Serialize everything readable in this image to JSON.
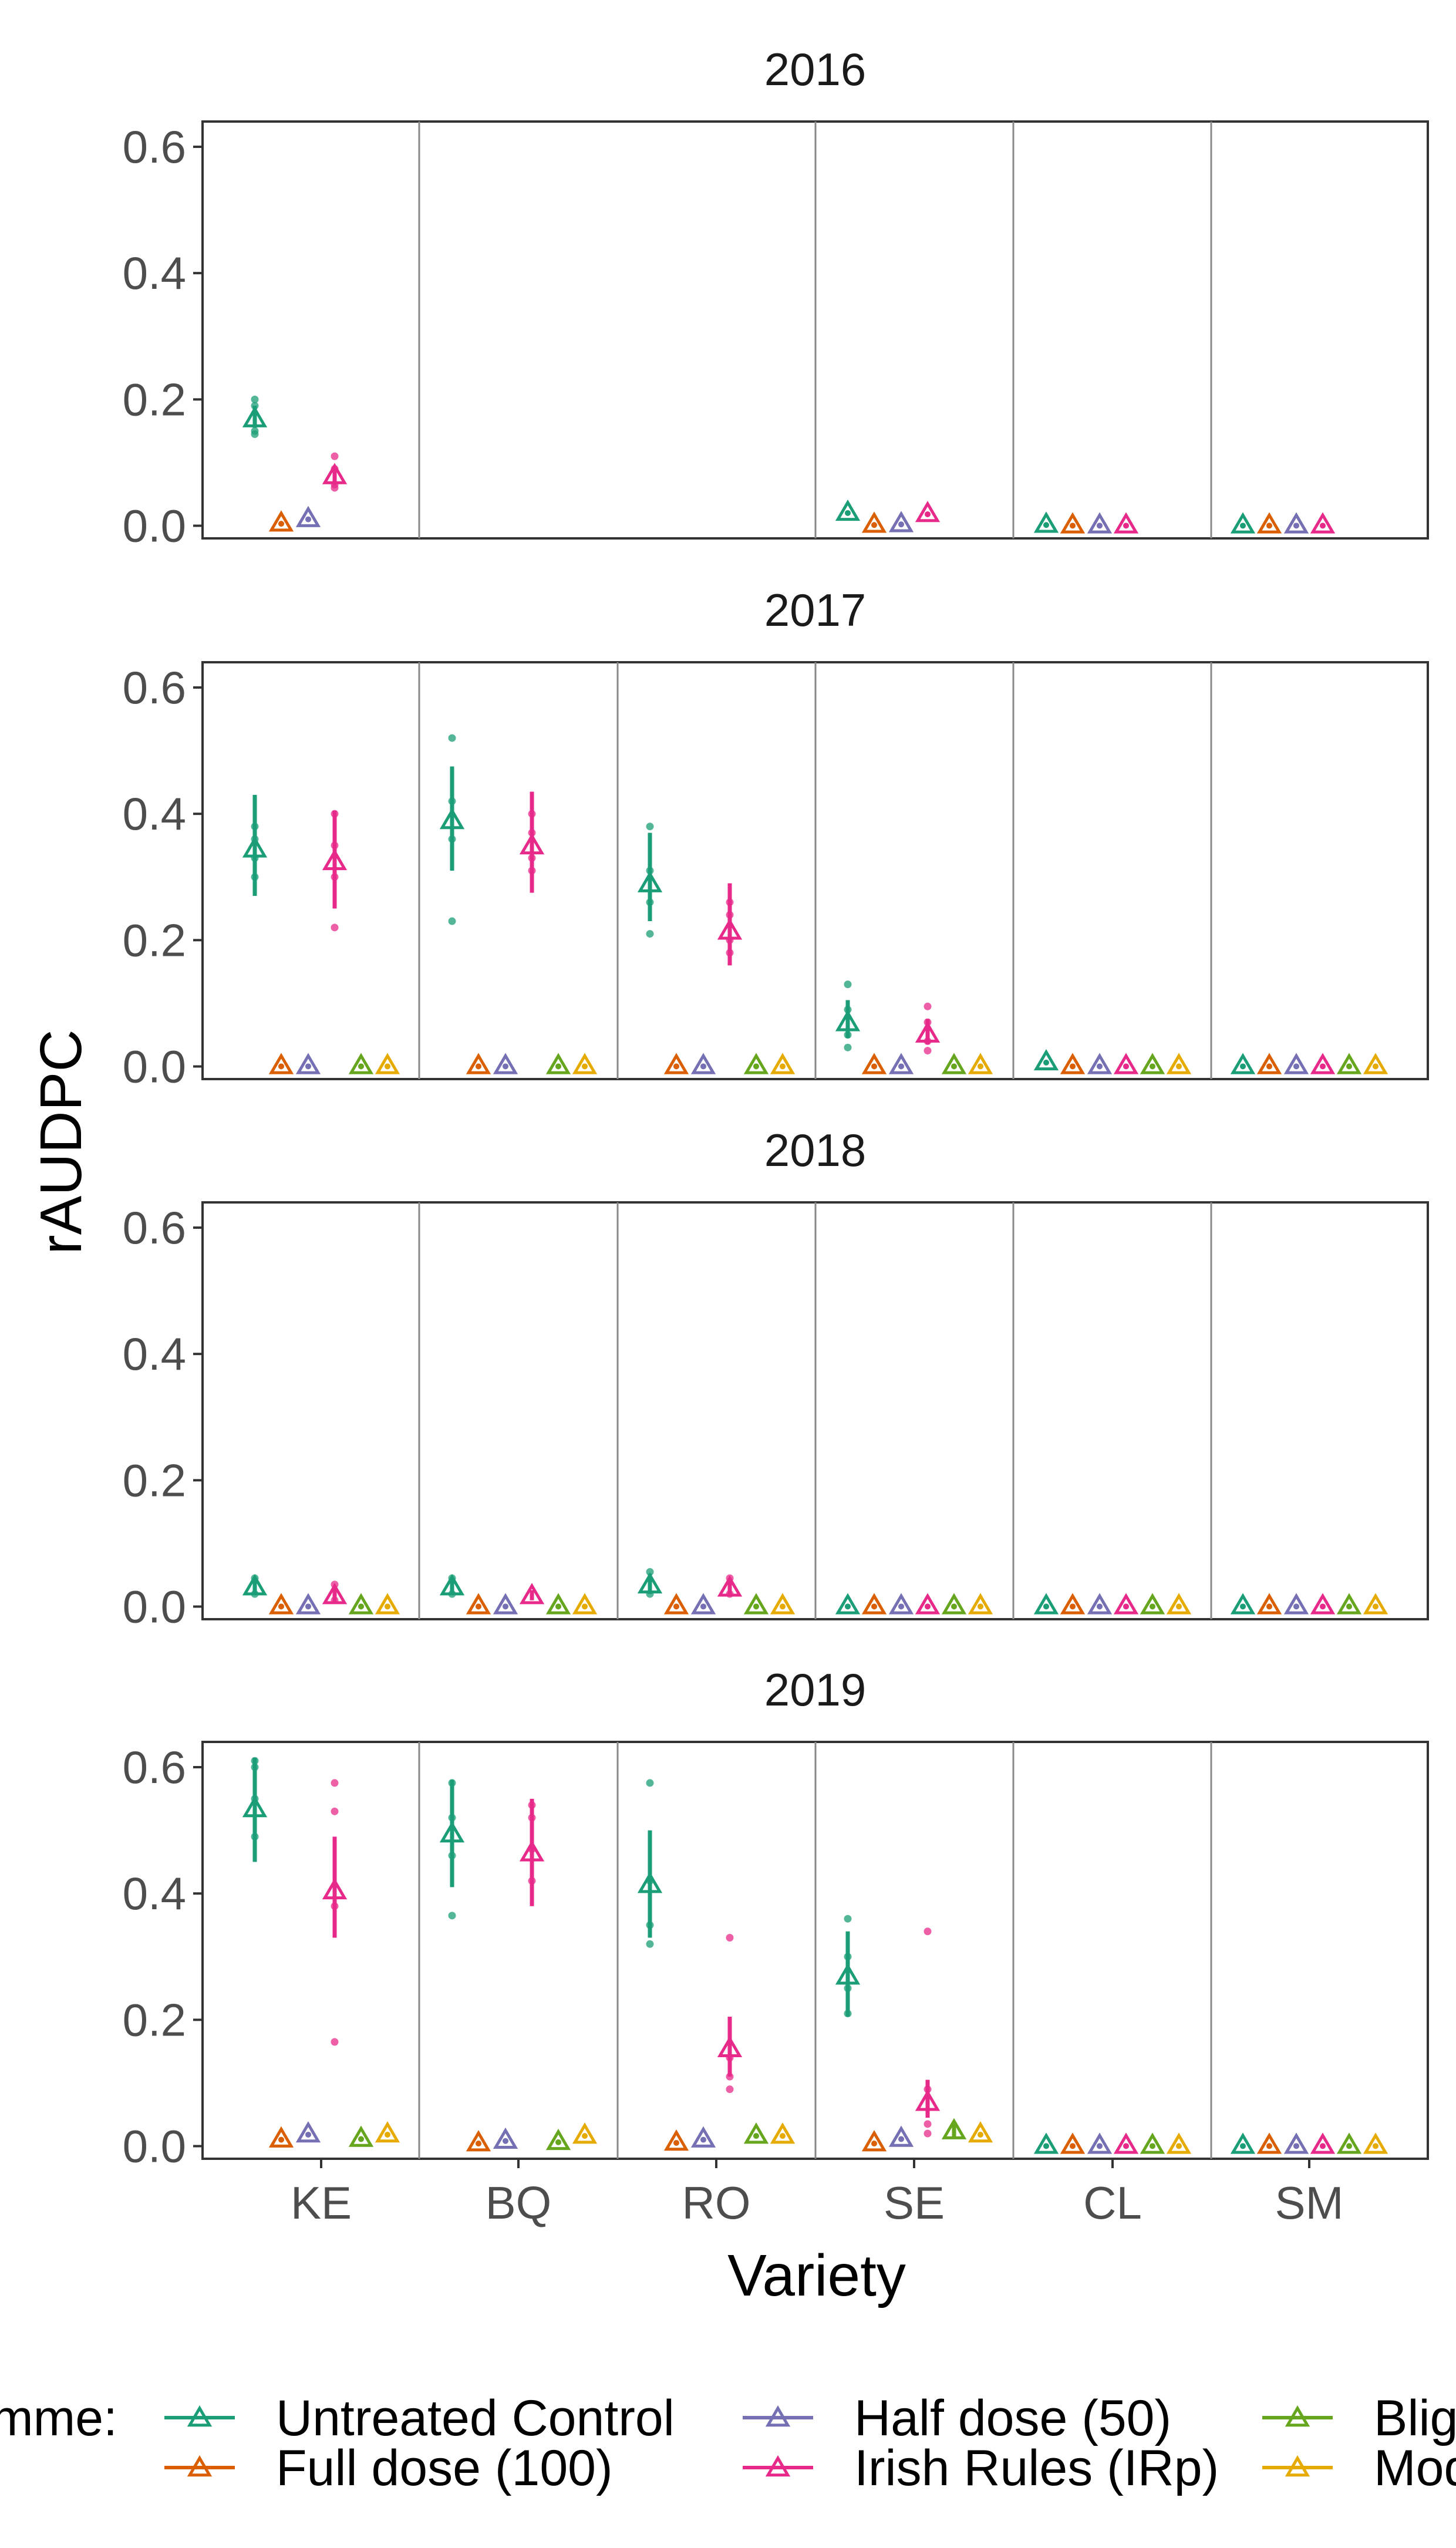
{
  "chart_data": {
    "type": "scatter",
    "xlabel": "Variety",
    "ylabel": "rAUDPC",
    "ylim": [
      -0.02,
      0.64
    ],
    "yticks": [
      0.0,
      0.2,
      0.4,
      0.6
    ],
    "ytick_labels": [
      "0.0",
      "0.2",
      "0.4",
      "0.6"
    ],
    "varieties": [
      "KE",
      "BQ",
      "RO",
      "SE",
      "CL",
      "SM"
    ],
    "legend": {
      "title": "Programme:",
      "position": "bottom",
      "entries": [
        {
          "key": "UC",
          "label": "Untreated Control",
          "color": "#1b9e77"
        },
        {
          "key": "FD",
          "label": "Full dose (100)",
          "color": "#d95f02"
        },
        {
          "key": "HD",
          "label": "Half dose (50)",
          "color": "#7570b3"
        },
        {
          "key": "IR",
          "label": "Irish Rules (IRp)",
          "color": "#e7298a"
        },
        {
          "key": "BM",
          "label": "Blight Manager",
          "color": "#66a61e"
        },
        {
          "key": "MO",
          "label": "Modified",
          "color": "#e6ab02"
        }
      ]
    },
    "panels": [
      {
        "year": "2016",
        "points": [
          {
            "variety": "KE",
            "prog": "UC",
            "mean": 0.17,
            "lo": 0.155,
            "hi": 0.19,
            "obs": [
              0.2,
              0.19,
              0.15,
              0.145
            ]
          },
          {
            "variety": "KE",
            "prog": "FD",
            "mean": 0.005
          },
          {
            "variety": "KE",
            "prog": "HD",
            "mean": 0.012
          },
          {
            "variety": "KE",
            "prog": "IR",
            "mean": 0.08,
            "lo": 0.065,
            "hi": 0.09,
            "obs": [
              0.11,
              0.09,
              0.065,
              0.06
            ]
          },
          {
            "variety": "SE",
            "prog": "UC",
            "mean": 0.022
          },
          {
            "variety": "SE",
            "prog": "FD",
            "mean": 0.003
          },
          {
            "variety": "SE",
            "prog": "HD",
            "mean": 0.004
          },
          {
            "variety": "SE",
            "prog": "IR",
            "mean": 0.02
          },
          {
            "variety": "CL",
            "prog": "UC",
            "mean": 0.003
          },
          {
            "variety": "CL",
            "prog": "FD",
            "mean": 0.002
          },
          {
            "variety": "CL",
            "prog": "HD",
            "mean": 0.002
          },
          {
            "variety": "CL",
            "prog": "IR",
            "mean": 0.002
          },
          {
            "variety": "SM",
            "prog": "UC",
            "mean": 0.002
          },
          {
            "variety": "SM",
            "prog": "FD",
            "mean": 0.002
          },
          {
            "variety": "SM",
            "prog": "HD",
            "mean": 0.002
          },
          {
            "variety": "SM",
            "prog": "IR",
            "mean": 0.002
          }
        ]
      },
      {
        "year": "2017",
        "points": [
          {
            "variety": "KE",
            "prog": "UC",
            "mean": 0.345,
            "lo": 0.27,
            "hi": 0.43,
            "obs": [
              0.3,
              0.33,
              0.36,
              0.38
            ]
          },
          {
            "variety": "KE",
            "prog": "FD",
            "mean": 0.002
          },
          {
            "variety": "KE",
            "prog": "HD",
            "mean": 0.002
          },
          {
            "variety": "KE",
            "prog": "IR",
            "mean": 0.325,
            "lo": 0.25,
            "hi": 0.405,
            "obs": [
              0.22,
              0.3,
              0.35,
              0.4
            ]
          },
          {
            "variety": "KE",
            "prog": "BM",
            "mean": 0.002
          },
          {
            "variety": "KE",
            "prog": "MO",
            "mean": 0.002
          },
          {
            "variety": "BQ",
            "prog": "UC",
            "mean": 0.39,
            "lo": 0.31,
            "hi": 0.475,
            "obs": [
              0.23,
              0.36,
              0.42,
              0.52
            ]
          },
          {
            "variety": "BQ",
            "prog": "FD",
            "mean": 0.002
          },
          {
            "variety": "BQ",
            "prog": "HD",
            "mean": 0.002
          },
          {
            "variety": "BQ",
            "prog": "IR",
            "mean": 0.35,
            "lo": 0.275,
            "hi": 0.435,
            "obs": [
              0.31,
              0.33,
              0.37,
              0.4
            ]
          },
          {
            "variety": "BQ",
            "prog": "BM",
            "mean": 0.002
          },
          {
            "variety": "BQ",
            "prog": "MO",
            "mean": 0.002
          },
          {
            "variety": "RO",
            "prog": "UC",
            "mean": 0.29,
            "lo": 0.23,
            "hi": 0.37,
            "obs": [
              0.21,
              0.26,
              0.31,
              0.38
            ]
          },
          {
            "variety": "RO",
            "prog": "FD",
            "mean": 0.002
          },
          {
            "variety": "RO",
            "prog": "HD",
            "mean": 0.002
          },
          {
            "variety": "RO",
            "prog": "IR",
            "mean": 0.215,
            "lo": 0.16,
            "hi": 0.29,
            "obs": [
              0.18,
              0.2,
              0.24,
              0.26
            ]
          },
          {
            "variety": "RO",
            "prog": "BM",
            "mean": 0.002
          },
          {
            "variety": "RO",
            "prog": "MO",
            "mean": 0.002
          },
          {
            "variety": "SE",
            "prog": "UC",
            "mean": 0.07,
            "lo": 0.045,
            "hi": 0.105,
            "obs": [
              0.03,
              0.05,
              0.09,
              0.13
            ]
          },
          {
            "variety": "SE",
            "prog": "FD",
            "mean": 0.002
          },
          {
            "variety": "SE",
            "prog": "HD",
            "mean": 0.002
          },
          {
            "variety": "SE",
            "prog": "IR",
            "mean": 0.052,
            "lo": 0.035,
            "hi": 0.075,
            "obs": [
              0.025,
              0.04,
              0.07,
              0.095
            ]
          },
          {
            "variety": "SE",
            "prog": "BM",
            "mean": 0.002
          },
          {
            "variety": "SE",
            "prog": "MO",
            "mean": 0.002
          },
          {
            "variety": "CL",
            "prog": "UC",
            "mean": 0.008
          },
          {
            "variety": "CL",
            "prog": "FD",
            "mean": 0.002
          },
          {
            "variety": "CL",
            "prog": "HD",
            "mean": 0.002
          },
          {
            "variety": "CL",
            "prog": "IR",
            "mean": 0.002
          },
          {
            "variety": "CL",
            "prog": "BM",
            "mean": 0.002
          },
          {
            "variety": "CL",
            "prog": "MO",
            "mean": 0.002
          },
          {
            "variety": "SM",
            "prog": "UC",
            "mean": 0.002
          },
          {
            "variety": "SM",
            "prog": "FD",
            "mean": 0.002
          },
          {
            "variety": "SM",
            "prog": "HD",
            "mean": 0.002
          },
          {
            "variety": "SM",
            "prog": "IR",
            "mean": 0.002
          },
          {
            "variety": "SM",
            "prog": "BM",
            "mean": 0.002
          },
          {
            "variety": "SM",
            "prog": "MO",
            "mean": 0.002
          }
        ]
      },
      {
        "year": "2018",
        "points": [
          {
            "variety": "KE",
            "prog": "UC",
            "mean": 0.032,
            "lo": 0.02,
            "hi": 0.045,
            "obs": [
              0.02,
              0.045
            ]
          },
          {
            "variety": "KE",
            "prog": "FD",
            "mean": 0.002
          },
          {
            "variety": "KE",
            "prog": "HD",
            "mean": 0.002
          },
          {
            "variety": "KE",
            "prog": "IR",
            "mean": 0.018,
            "lo": 0.008,
            "hi": 0.03,
            "obs": [
              0.035,
              0.01
            ]
          },
          {
            "variety": "KE",
            "prog": "BM",
            "mean": 0.002
          },
          {
            "variety": "KE",
            "prog": "MO",
            "mean": 0.002
          },
          {
            "variety": "BQ",
            "prog": "UC",
            "mean": 0.032,
            "lo": 0.02,
            "hi": 0.045,
            "obs": [
              0.02,
              0.045
            ]
          },
          {
            "variety": "BQ",
            "prog": "FD",
            "mean": 0.002
          },
          {
            "variety": "BQ",
            "prog": "HD",
            "mean": 0.002
          },
          {
            "variety": "BQ",
            "prog": "IR",
            "mean": 0.018,
            "lo": 0.01,
            "hi": 0.026
          },
          {
            "variety": "BQ",
            "prog": "BM",
            "mean": 0.002
          },
          {
            "variety": "BQ",
            "prog": "MO",
            "mean": 0.002
          },
          {
            "variety": "RO",
            "prog": "UC",
            "mean": 0.035,
            "lo": 0.02,
            "hi": 0.052,
            "obs": [
              0.055,
              0.02
            ]
          },
          {
            "variety": "RO",
            "prog": "FD",
            "mean": 0.002
          },
          {
            "variety": "RO",
            "prog": "HD",
            "mean": 0.002
          },
          {
            "variety": "RO",
            "prog": "IR",
            "mean": 0.03,
            "lo": 0.018,
            "hi": 0.045,
            "obs": [
              0.045,
              0.02
            ]
          },
          {
            "variety": "RO",
            "prog": "BM",
            "mean": 0.002
          },
          {
            "variety": "RO",
            "prog": "MO",
            "mean": 0.002
          },
          {
            "variety": "SE",
            "prog": "UC",
            "mean": 0.002
          },
          {
            "variety": "SE",
            "prog": "FD",
            "mean": 0.002
          },
          {
            "variety": "SE",
            "prog": "HD",
            "mean": 0.002
          },
          {
            "variety": "SE",
            "prog": "IR",
            "mean": 0.002
          },
          {
            "variety": "SE",
            "prog": "BM",
            "mean": 0.002
          },
          {
            "variety": "SE",
            "prog": "MO",
            "mean": 0.002
          },
          {
            "variety": "CL",
            "prog": "UC",
            "mean": 0.002
          },
          {
            "variety": "CL",
            "prog": "FD",
            "mean": 0.002
          },
          {
            "variety": "CL",
            "prog": "HD",
            "mean": 0.002
          },
          {
            "variety": "CL",
            "prog": "IR",
            "mean": 0.002
          },
          {
            "variety": "CL",
            "prog": "BM",
            "mean": 0.002
          },
          {
            "variety": "CL",
            "prog": "MO",
            "mean": 0.002
          },
          {
            "variety": "SM",
            "prog": "UC",
            "mean": 0.002
          },
          {
            "variety": "SM",
            "prog": "FD",
            "mean": 0.002
          },
          {
            "variety": "SM",
            "prog": "HD",
            "mean": 0.002
          },
          {
            "variety": "SM",
            "prog": "IR",
            "mean": 0.002
          },
          {
            "variety": "SM",
            "prog": "BM",
            "mean": 0.002
          },
          {
            "variety": "SM",
            "prog": "MO",
            "mean": 0.002
          }
        ]
      },
      {
        "year": "2019",
        "points": [
          {
            "variety": "KE",
            "prog": "UC",
            "mean": 0.535,
            "lo": 0.45,
            "hi": 0.615,
            "obs": [
              0.49,
              0.55,
              0.6,
              0.61
            ]
          },
          {
            "variety": "KE",
            "prog": "FD",
            "mean": 0.012
          },
          {
            "variety": "KE",
            "prog": "HD",
            "mean": 0.02
          },
          {
            "variety": "KE",
            "prog": "IR",
            "mean": 0.405,
            "lo": 0.33,
            "hi": 0.49,
            "obs": [
              0.165,
              0.38,
              0.53,
              0.575
            ]
          },
          {
            "variety": "KE",
            "prog": "BM",
            "mean": 0.013
          },
          {
            "variety": "KE",
            "prog": "MO",
            "mean": 0.02
          },
          {
            "variety": "BQ",
            "prog": "UC",
            "mean": 0.495,
            "lo": 0.41,
            "hi": 0.58,
            "obs": [
              0.365,
              0.46,
              0.52,
              0.575
            ]
          },
          {
            "variety": "BQ",
            "prog": "FD",
            "mean": 0.006
          },
          {
            "variety": "BQ",
            "prog": "HD",
            "mean": 0.01
          },
          {
            "variety": "BQ",
            "prog": "IR",
            "mean": 0.465,
            "lo": 0.38,
            "hi": 0.55,
            "obs": [
              0.42,
              0.47,
              0.52,
              0.54
            ]
          },
          {
            "variety": "BQ",
            "prog": "BM",
            "mean": 0.008
          },
          {
            "variety": "BQ",
            "prog": "MO",
            "mean": 0.018
          },
          {
            "variety": "RO",
            "prog": "UC",
            "mean": 0.415,
            "lo": 0.33,
            "hi": 0.5,
            "obs": [
              0.32,
              0.35,
              0.42,
              0.575
            ]
          },
          {
            "variety": "RO",
            "prog": "FD",
            "mean": 0.007
          },
          {
            "variety": "RO",
            "prog": "HD",
            "mean": 0.012
          },
          {
            "variety": "RO",
            "prog": "IR",
            "mean": 0.155,
            "lo": 0.11,
            "hi": 0.205,
            "obs": [
              0.09,
              0.11,
              0.14,
              0.33
            ]
          },
          {
            "variety": "RO",
            "prog": "BM",
            "mean": 0.018
          },
          {
            "variety": "RO",
            "prog": "MO",
            "mean": 0.018
          },
          {
            "variety": "SE",
            "prog": "UC",
            "mean": 0.27,
            "lo": 0.205,
            "hi": 0.34,
            "obs": [
              0.21,
              0.25,
              0.3,
              0.36
            ]
          },
          {
            "variety": "SE",
            "prog": "FD",
            "mean": 0.006
          },
          {
            "variety": "SE",
            "prog": "HD",
            "mean": 0.013
          },
          {
            "variety": "SE",
            "prog": "IR",
            "mean": 0.07,
            "lo": 0.045,
            "hi": 0.105,
            "obs": [
              0.02,
              0.035,
              0.09,
              0.34
            ]
          },
          {
            "variety": "SE",
            "prog": "BM",
            "mean": 0.025,
            "lo": 0.015,
            "hi": 0.035
          },
          {
            "variety": "SE",
            "prog": "MO",
            "mean": 0.02
          },
          {
            "variety": "CL",
            "prog": "UC",
            "mean": 0.002
          },
          {
            "variety": "CL",
            "prog": "FD",
            "mean": 0.002
          },
          {
            "variety": "CL",
            "prog": "HD",
            "mean": 0.002
          },
          {
            "variety": "CL",
            "prog": "IR",
            "mean": 0.002
          },
          {
            "variety": "CL",
            "prog": "BM",
            "mean": 0.002
          },
          {
            "variety": "CL",
            "prog": "MO",
            "mean": 0.002
          },
          {
            "variety": "SM",
            "prog": "UC",
            "mean": 0.002
          },
          {
            "variety": "SM",
            "prog": "FD",
            "mean": 0.002
          },
          {
            "variety": "SM",
            "prog": "HD",
            "mean": 0.002
          },
          {
            "variety": "SM",
            "prog": "IR",
            "mean": 0.002
          },
          {
            "variety": "SM",
            "prog": "BM",
            "mean": 0.002
          },
          {
            "variety": "SM",
            "prog": "MO",
            "mean": 0.002
          }
        ]
      }
    ]
  }
}
